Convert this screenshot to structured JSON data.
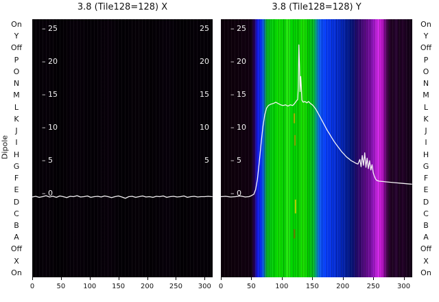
{
  "figure": {
    "dipole_axis_label": "Dipole",
    "dipole_labels": [
      "On",
      "Y",
      "Off",
      "P",
      "O",
      "N",
      "M",
      "L",
      "K",
      "J",
      "I",
      "H",
      "G",
      "F",
      "E",
      "D",
      "C",
      "B",
      "A",
      "Off",
      "X",
      "On"
    ],
    "background_color": "#ffffff",
    "trace_color": "#f5f3f5"
  },
  "chart_data": [
    {
      "id": "panel-x",
      "type": "heatmap",
      "title": "3.8 (Tile128=128) X",
      "xlabel": "",
      "ylabel": "",
      "x_range": [
        0,
        314
      ],
      "y_range": [
        -12.7,
        26.5
      ],
      "x_ticks": [
        0,
        50,
        100,
        150,
        200,
        250,
        300
      ],
      "y_ticks": [
        {
          "v": 25,
          "label": "– 25"
        },
        {
          "v": 20,
          "label": "– 20"
        },
        {
          "v": 15,
          "label": "– 15"
        },
        {
          "v": 10,
          "label": "– 10"
        },
        {
          "v": 5,
          "label": "– 5"
        },
        {
          "v": 0,
          "label": "– 0"
        }
      ],
      "y_ticks_right": [
        {
          "v": 25,
          "label": "25"
        },
        {
          "v": 20,
          "label": "20"
        },
        {
          "v": 15,
          "label": "15"
        },
        {
          "v": 10,
          "label": "10"
        },
        {
          "v": 5,
          "label": "5"
        }
      ],
      "line_series": {
        "name": "tile-trace-X",
        "points": [
          [
            0,
            -0.5
          ],
          [
            6,
            -0.4
          ],
          [
            12,
            -0.55
          ],
          [
            18,
            -0.45
          ],
          [
            24,
            -0.3
          ],
          [
            30,
            -0.5
          ],
          [
            36,
            -0.4
          ],
          [
            42,
            -0.55
          ],
          [
            48,
            -0.35
          ],
          [
            54,
            -0.45
          ],
          [
            60,
            -0.6
          ],
          [
            66,
            -0.4
          ],
          [
            72,
            -0.45
          ],
          [
            78,
            -0.3
          ],
          [
            84,
            -0.5
          ],
          [
            90,
            -0.45
          ],
          [
            96,
            -0.35
          ],
          [
            102,
            -0.55
          ],
          [
            108,
            -0.45
          ],
          [
            114,
            -0.4
          ],
          [
            120,
            -0.5
          ],
          [
            126,
            -0.35
          ],
          [
            132,
            -0.45
          ],
          [
            138,
            -0.6
          ],
          [
            144,
            -0.45
          ],
          [
            150,
            -0.35
          ],
          [
            156,
            -0.5
          ],
          [
            162,
            -0.7
          ],
          [
            168,
            -0.45
          ],
          [
            174,
            -0.4
          ],
          [
            180,
            -0.55
          ],
          [
            186,
            -0.45
          ],
          [
            192,
            -0.35
          ],
          [
            198,
            -0.5
          ],
          [
            204,
            -0.45
          ],
          [
            210,
            -0.55
          ],
          [
            216,
            -0.4
          ],
          [
            222,
            -0.45
          ],
          [
            228,
            -0.35
          ],
          [
            234,
            -0.55
          ],
          [
            240,
            -0.45
          ],
          [
            246,
            -0.4
          ],
          [
            252,
            -0.5
          ],
          [
            258,
            -0.45
          ],
          [
            264,
            -0.35
          ],
          [
            270,
            -0.55
          ],
          [
            276,
            -0.45
          ],
          [
            282,
            -0.4
          ],
          [
            288,
            -0.5
          ],
          [
            294,
            -0.45
          ],
          [
            300,
            -0.45
          ],
          [
            306,
            -0.4
          ],
          [
            313,
            -0.45
          ]
        ]
      },
      "heatmap_bands": [
        {
          "pos": 0.0,
          "color": "#030004"
        },
        {
          "pos": 0.08,
          "color": "#060008"
        },
        {
          "pos": 0.15,
          "color": "#020003"
        },
        {
          "pos": 0.24,
          "color": "#070009"
        },
        {
          "pos": 0.33,
          "color": "#030005"
        },
        {
          "pos": 0.42,
          "color": "#08000a"
        },
        {
          "pos": 0.5,
          "color": "#020004"
        },
        {
          "pos": 0.58,
          "color": "#060107"
        },
        {
          "pos": 0.66,
          "color": "#030004"
        },
        {
          "pos": 0.75,
          "color": "#07000a"
        },
        {
          "pos": 0.83,
          "color": "#020003"
        },
        {
          "pos": 0.91,
          "color": "#050007"
        },
        {
          "pos": 1.0,
          "color": "#030005"
        }
      ],
      "artifact_marks": []
    },
    {
      "id": "panel-y",
      "type": "heatmap",
      "title": "3.8 (Tile128=128) Y",
      "xlabel": "",
      "ylabel": "",
      "x_range": [
        0,
        314
      ],
      "y_range": [
        -12.7,
        26.5
      ],
      "x_ticks": [
        0,
        50,
        100,
        150,
        200,
        250,
        300
      ],
      "y_ticks": [
        {
          "v": 25,
          "label": "– 25"
        },
        {
          "v": 20,
          "label": "– 20"
        },
        {
          "v": 15,
          "label": "– 15"
        },
        {
          "v": 10,
          "label": "– 10"
        },
        {
          "v": 5,
          "label": "– 5"
        },
        {
          "v": 0,
          "label": "– 0"
        }
      ],
      "y_ticks_right": [],
      "line_series": {
        "name": "tile-trace-Y",
        "points": [
          [
            0,
            -0.45
          ],
          [
            8,
            -0.4
          ],
          [
            16,
            -0.5
          ],
          [
            24,
            -0.45
          ],
          [
            32,
            -0.35
          ],
          [
            40,
            -0.5
          ],
          [
            46,
            -0.45
          ],
          [
            50,
            -0.3
          ],
          [
            54,
            -0.1
          ],
          [
            57,
            0.6
          ],
          [
            60,
            2.2
          ],
          [
            63,
            4.8
          ],
          [
            66,
            7.6
          ],
          [
            69,
            10.2
          ],
          [
            72,
            12.0
          ],
          [
            75,
            13.0
          ],
          [
            78,
            13.4
          ],
          [
            82,
            13.6
          ],
          [
            86,
            13.7
          ],
          [
            90,
            13.9
          ],
          [
            94,
            13.7
          ],
          [
            98,
            13.5
          ],
          [
            102,
            13.4
          ],
          [
            106,
            13.5
          ],
          [
            110,
            13.3
          ],
          [
            114,
            13.5
          ],
          [
            118,
            13.4
          ],
          [
            121,
            13.7
          ],
          [
            124,
            14.1
          ],
          [
            126,
            14.3
          ],
          [
            127,
            16.0
          ],
          [
            128,
            22.6
          ],
          [
            129,
            19.5
          ],
          [
            130,
            15.5
          ],
          [
            131,
            17.8
          ],
          [
            132,
            16.2
          ],
          [
            133,
            14.2
          ],
          [
            135,
            13.9
          ],
          [
            138,
            14.0
          ],
          [
            141,
            13.8
          ],
          [
            144,
            14.0
          ],
          [
            147,
            13.7
          ],
          [
            150,
            13.5
          ],
          [
            153,
            13.2
          ],
          [
            156,
            12.8
          ],
          [
            159,
            12.3
          ],
          [
            162,
            11.8
          ],
          [
            166,
            11.1
          ],
          [
            170,
            10.4
          ],
          [
            174,
            9.7
          ],
          [
            178,
            9.1
          ],
          [
            182,
            8.5
          ],
          [
            186,
            7.9
          ],
          [
            190,
            7.4
          ],
          [
            194,
            6.9
          ],
          [
            198,
            6.4
          ],
          [
            202,
            6.0
          ],
          [
            206,
            5.6
          ],
          [
            210,
            5.3
          ],
          [
            214,
            5.0
          ],
          [
            218,
            4.8
          ],
          [
            222,
            4.6
          ],
          [
            225,
            4.5
          ],
          [
            228,
            5.2
          ],
          [
            230,
            4.1
          ],
          [
            232,
            5.8
          ],
          [
            234,
            4.3
          ],
          [
            236,
            6.2
          ],
          [
            238,
            4.0
          ],
          [
            240,
            5.4
          ],
          [
            242,
            3.8
          ],
          [
            244,
            5.0
          ],
          [
            246,
            3.6
          ],
          [
            248,
            4.4
          ],
          [
            250,
            3.2
          ],
          [
            252,
            2.6
          ],
          [
            254,
            2.2
          ],
          [
            256,
            2.0
          ],
          [
            260,
            1.9
          ],
          [
            265,
            1.85
          ],
          [
            270,
            1.8
          ],
          [
            276,
            1.75
          ],
          [
            282,
            1.7
          ],
          [
            288,
            1.65
          ],
          [
            294,
            1.6
          ],
          [
            300,
            1.55
          ],
          [
            306,
            1.5
          ],
          [
            313,
            1.45
          ]
        ]
      },
      "heatmap_bands": [
        {
          "pos": 0.0,
          "color": "#0b0008"
        },
        {
          "pos": 0.09,
          "color": "#0e000c"
        },
        {
          "pos": 0.16,
          "color": "#100010"
        },
        {
          "pos": 0.175,
          "color": "#26005a"
        },
        {
          "pos": 0.19,
          "color": "#1518e0"
        },
        {
          "pos": 0.21,
          "color": "#0830f8"
        },
        {
          "pos": 0.225,
          "color": "#0a68c8"
        },
        {
          "pos": 0.238,
          "color": "#0aa428"
        },
        {
          "pos": 0.255,
          "color": "#06c414"
        },
        {
          "pos": 0.28,
          "color": "#00d400"
        },
        {
          "pos": 0.305,
          "color": "#12e000"
        },
        {
          "pos": 0.33,
          "color": "#00cc00"
        },
        {
          "pos": 0.35,
          "color": "#2aee12"
        },
        {
          "pos": 0.368,
          "color": "#00d800"
        },
        {
          "pos": 0.4,
          "color": "#04cc00"
        },
        {
          "pos": 0.43,
          "color": "#1ce400"
        },
        {
          "pos": 0.46,
          "color": "#00c400"
        },
        {
          "pos": 0.485,
          "color": "#06ba2a"
        },
        {
          "pos": 0.505,
          "color": "#0a84c0"
        },
        {
          "pos": 0.522,
          "color": "#0a50f4"
        },
        {
          "pos": 0.545,
          "color": "#0840ff"
        },
        {
          "pos": 0.575,
          "color": "#0634e8"
        },
        {
          "pos": 0.605,
          "color": "#052cd0"
        },
        {
          "pos": 0.635,
          "color": "#0424b4"
        },
        {
          "pos": 0.66,
          "color": "#031c94"
        },
        {
          "pos": 0.685,
          "color": "#061478"
        },
        {
          "pos": 0.705,
          "color": "#1c0a6a"
        },
        {
          "pos": 0.725,
          "color": "#34086e"
        },
        {
          "pos": 0.748,
          "color": "#520a7e"
        },
        {
          "pos": 0.772,
          "color": "#6e0c96"
        },
        {
          "pos": 0.792,
          "color": "#8812b4"
        },
        {
          "pos": 0.808,
          "color": "#b61ed6"
        },
        {
          "pos": 0.825,
          "color": "#d42ae8"
        },
        {
          "pos": 0.84,
          "color": "#c014cc"
        },
        {
          "pos": 0.854,
          "color": "#8a0a9a"
        },
        {
          "pos": 0.866,
          "color": "#4c0654"
        },
        {
          "pos": 0.88,
          "color": "#28032c"
        },
        {
          "pos": 0.896,
          "color": "#1c021e"
        },
        {
          "pos": 0.916,
          "color": "#2a0434"
        },
        {
          "pos": 0.932,
          "color": "#1a021c"
        },
        {
          "pos": 0.952,
          "color": "#220028"
        },
        {
          "pos": 0.976,
          "color": "#16021a"
        },
        {
          "pos": 1.0,
          "color": "#120014"
        }
      ],
      "artifact_marks": [
        {
          "x": 120.5,
          "y1": 12.2,
          "y2": 10.7,
          "color": "#a8b400"
        },
        {
          "x": 121.5,
          "y1": 8.9,
          "y2": 7.3,
          "color": "#8a9a00"
        },
        {
          "x": 122.5,
          "y1": -0.9,
          "y2": -3.0,
          "color": "#c0cc00"
        },
        {
          "x": 120.8,
          "y1": -5.4,
          "y2": -6.8,
          "color": "#6e7a00"
        }
      ]
    }
  ]
}
